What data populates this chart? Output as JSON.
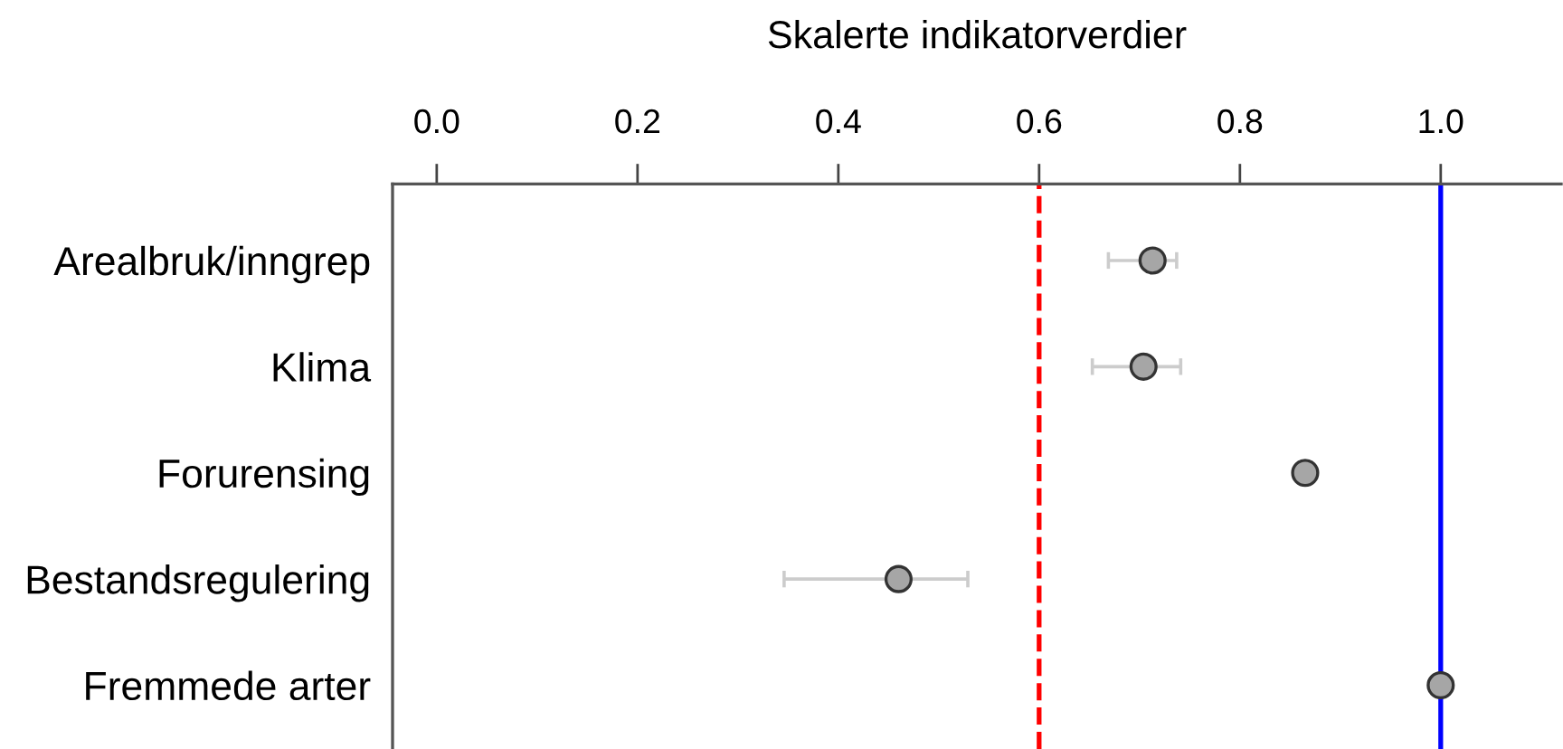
{
  "chart_data": {
    "type": "scatter",
    "orientation": "horizontal",
    "xlabel": "Skalerte indikatorverdier",
    "categories": [
      "Arealbruk/inngrep",
      "Klima",
      "Forurensing",
      "Bestandsregulering",
      "Fremmede arter"
    ],
    "values": [
      0.713,
      0.704,
      0.865,
      0.46,
      1.0
    ],
    "color": "#a6a6a6",
    "marker": "circle",
    "errors": [
      [
        0.669,
        0.737
      ],
      [
        0.653,
        0.741
      ],
      null,
      [
        0.346,
        0.529
      ],
      null
    ],
    "xlim": [
      -0.044,
      1.12
    ],
    "xticks": [
      {
        "value": 0,
        "label": "0.0"
      },
      0.2,
      0.4,
      0.6,
      0.8,
      {
        "value": 1,
        "label": "1.0"
      }
    ],
    "ref_lines": [
      {
        "axis": "x",
        "value": 0.6,
        "color": "#ff0000",
        "line_style": "dashed"
      },
      {
        "axis": "x",
        "value": 1.0,
        "color": "#0000ff",
        "line_style": "solid"
      }
    ]
  }
}
